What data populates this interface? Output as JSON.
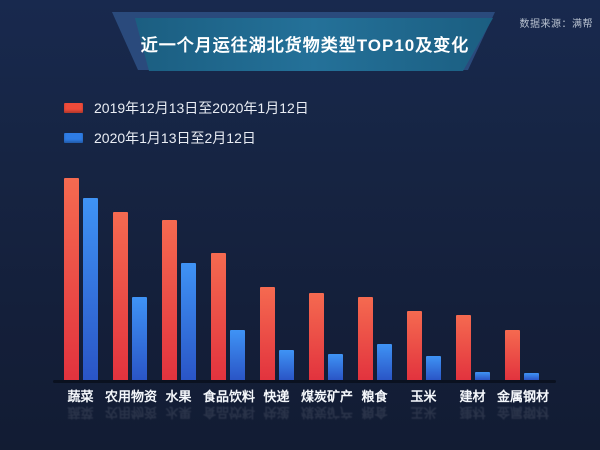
{
  "title": "近一个月运往湖北货物类型TOP10及变化",
  "source_note": "数据来源：满帮",
  "colors": {
    "background_top": "#18294e",
    "background_bottom": "#121c33",
    "banner_front": "#1d6284",
    "banner_front_center": "#247199",
    "banner_back": "#2a4a7c",
    "axis_line": "#0a1120",
    "bar_red_top": "#f56a50",
    "bar_red_bottom": "#e2333e",
    "bar_blue_top": "#3f93f5",
    "bar_blue_bottom": "#2a55c6",
    "legend_red": "#ee4b3a",
    "legend_blue": "#2e7ce5"
  },
  "legend": {
    "items": [
      {
        "label": "2019年12月13日至2020年1月12日",
        "color": "#ee4b3a"
      },
      {
        "label": "2020年1月13日至2月12日",
        "color": "#2e7ce5"
      }
    ]
  },
  "chart_data": {
    "type": "bar",
    "title": "近一个月运往湖北货物类型TOP10及变化",
    "categories": [
      "蔬菜",
      "农用物资",
      "水果",
      "食品饮料",
      "快递",
      "煤炭矿产",
      "粮食",
      "玉米",
      "建材",
      "金属钢材"
    ],
    "series": [
      {
        "name": "2019年12月13日至2020年1月12日",
        "color_top": "#f56a50",
        "color_bottom": "#e2333e",
        "values": [
          100,
          83,
          79,
          63,
          46,
          43,
          41,
          34,
          32,
          25
        ]
      },
      {
        "name": "2020年1月13日至2月12日",
        "color_top": "#3f93f5",
        "color_bottom": "#2a55c6",
        "values": [
          90,
          41,
          58,
          25,
          15,
          13,
          18,
          12,
          4,
          3.5
        ]
      }
    ],
    "xlabel": "",
    "ylabel": "",
    "ylim": [
      0,
      100
    ],
    "value_axis_visible": false,
    "gridlines": false,
    "legend_position": "top-left",
    "note": "no numeric axis shown; values estimated relative to tallest bar = 100"
  }
}
